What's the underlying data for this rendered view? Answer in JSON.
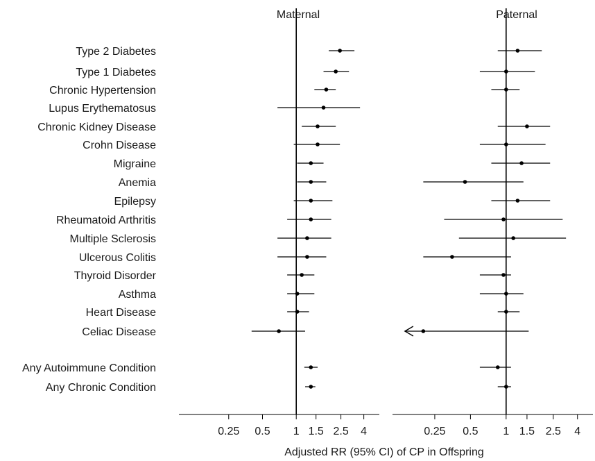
{
  "chart_data": {
    "type": "forest",
    "xlabel": "Adjusted RR (95% CI) of CP in Offspring",
    "scale": "log",
    "reference_value": 1,
    "conditions": [
      "Type 2 Diabetes",
      "Type 1 Diabetes",
      "Chronic Hypertension",
      "Lupus Erythematosus",
      "Chronic Kidney Disease",
      "Crohn Disease",
      "Migraine",
      "Anemia",
      "Epilepsy",
      "Rheumatoid Arthritis",
      "Multiple Sclerosis",
      "Ulcerous  Colitis",
      "Thyroid Disorder",
      "Asthma",
      "Heart Disease",
      "Celiac Disease",
      "Any Autoimmune Condition",
      "Any Chronic Condition"
    ],
    "panels": [
      {
        "title": "Maternal",
        "xlim": [
          0.09,
          5.5
        ],
        "ticks": [
          {
            "value": 0.25,
            "label": "0.25"
          },
          {
            "value": 0.5,
            "label": "0.5"
          },
          {
            "value": 1,
            "label": "1"
          },
          {
            "value": 1.5,
            "label": "1.5"
          },
          {
            "value": 2.5,
            "label": "2.5"
          },
          {
            "value": 4,
            "label": "4"
          }
        ],
        "estimates": [
          {
            "rr": 2.45,
            "lower": 1.95,
            "upper": 3.3
          },
          {
            "rr": 2.25,
            "lower": 1.75,
            "upper": 2.95
          },
          {
            "rr": 1.85,
            "lower": 1.45,
            "upper": 2.25
          },
          {
            "rr": 1.75,
            "lower": 0.68,
            "upper": 3.7
          },
          {
            "rr": 1.55,
            "lower": 1.12,
            "upper": 2.25
          },
          {
            "rr": 1.55,
            "lower": 0.95,
            "upper": 2.45
          },
          {
            "rr": 1.35,
            "lower": 1.02,
            "upper": 1.75
          },
          {
            "rr": 1.35,
            "lower": 1.02,
            "upper": 1.85
          },
          {
            "rr": 1.35,
            "lower": 0.95,
            "upper": 2.1
          },
          {
            "rr": 1.35,
            "lower": 0.83,
            "upper": 2.05
          },
          {
            "rr": 1.25,
            "lower": 0.68,
            "upper": 2.05
          },
          {
            "rr": 1.25,
            "lower": 0.68,
            "upper": 1.85
          },
          {
            "rr": 1.12,
            "lower": 0.83,
            "upper": 1.45
          },
          {
            "rr": 1.02,
            "lower": 0.83,
            "upper": 1.45
          },
          {
            "rr": 1.02,
            "lower": 0.83,
            "upper": 1.3
          },
          {
            "rr": 0.7,
            "lower": 0.4,
            "upper": 1.2
          },
          {
            "rr": 1.35,
            "lower": 1.18,
            "upper": 1.55
          },
          {
            "rr": 1.35,
            "lower": 1.2,
            "upper": 1.48
          }
        ]
      },
      {
        "title": "Paternal",
        "xlim": [
          0.11,
          5.4
        ],
        "ticks": [
          {
            "value": 0.25,
            "label": "0.25"
          },
          {
            "value": 0.5,
            "label": "0.5"
          },
          {
            "value": 1,
            "label": "1"
          },
          {
            "value": 1.5,
            "label": "1.5"
          },
          {
            "value": 2.5,
            "label": "2.5"
          },
          {
            "value": 4,
            "label": "4"
          }
        ],
        "estimates": [
          {
            "rr": 1.25,
            "lower": 0.85,
            "upper": 2.0
          },
          {
            "rr": 1.0,
            "lower": 0.6,
            "upper": 1.75
          },
          {
            "rr": 1.0,
            "lower": 0.75,
            "upper": 1.3
          },
          null,
          {
            "rr": 1.5,
            "lower": 0.85,
            "upper": 2.35
          },
          {
            "rr": 1.0,
            "lower": 0.6,
            "upper": 2.15
          },
          {
            "rr": 1.35,
            "lower": 0.75,
            "upper": 2.35
          },
          {
            "rr": 0.45,
            "lower": 0.2,
            "upper": 1.4
          },
          {
            "rr": 1.25,
            "lower": 0.75,
            "upper": 2.35
          },
          {
            "rr": 0.95,
            "lower": 0.3,
            "upper": 3.0
          },
          {
            "rr": 1.15,
            "lower": 0.4,
            "upper": 3.2
          },
          {
            "rr": 0.35,
            "lower": 0.2,
            "upper": 1.1
          },
          {
            "rr": 0.95,
            "lower": 0.6,
            "upper": 1.1
          },
          {
            "rr": 1.0,
            "lower": 0.6,
            "upper": 1.4
          },
          {
            "rr": 1.0,
            "lower": 0.85,
            "upper": 1.3
          },
          {
            "rr": 0.2,
            "lower": 0.14,
            "upper": 1.55,
            "lower_arrow": true
          },
          {
            "rr": 0.85,
            "lower": 0.6,
            "upper": 1.1
          },
          {
            "rr": 1.0,
            "lower": 0.85,
            "upper": 1.1
          }
        ]
      }
    ]
  }
}
